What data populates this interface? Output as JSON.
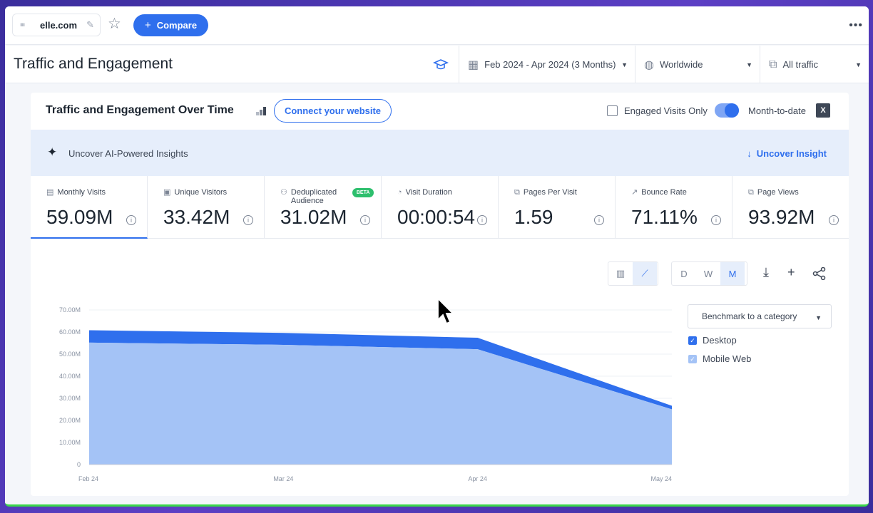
{
  "topbar": {
    "favicon": "ııııı",
    "site": "elle.com",
    "compare_label": "Compare"
  },
  "header": {
    "title": "Traffic and Engagement",
    "date_range": "Feb 2024 - Apr 2024 (3 Months)",
    "country": "Worldwide",
    "traffic_type": "All traffic"
  },
  "card": {
    "title": "Traffic and Engagement Over Time",
    "connect_label": "Connect your website",
    "engaged_label": "Engaged Visits Only",
    "mtd_label": "Month-to-date",
    "ai_text": "Uncover AI-Powered Insights",
    "ai_link": "Uncover Insight"
  },
  "metrics": [
    {
      "label": "Monthly Visits",
      "value": "59.09M",
      "icon": "calendar-icon"
    },
    {
      "label": "Unique Visitors",
      "value": "33.42M",
      "icon": "user-icon"
    },
    {
      "label": "Deduplicated Audience",
      "value": "31.02M",
      "icon": "users-icon",
      "badge": "BETA"
    },
    {
      "label": "Visit Duration",
      "value": "00:00:54",
      "icon": "timer-icon"
    },
    {
      "label": "Pages Per Visit",
      "value": "1.59",
      "icon": "pages-icon"
    },
    {
      "label": "Bounce Rate",
      "value": "71.11%",
      "icon": "bounce-icon"
    },
    {
      "label": "Page Views",
      "value": "93.92M",
      "icon": "pageviews-icon"
    }
  ],
  "toolbar": {
    "granularity": [
      "D",
      "W",
      "M"
    ],
    "selected_granularity": "M"
  },
  "benchmark_label": "Benchmark to a category",
  "legend": [
    {
      "name": "Desktop",
      "color": "#2f6fed"
    },
    {
      "name": "Mobile Web",
      "color": "#a4c3f6"
    }
  ],
  "chart_data": {
    "type": "area",
    "x": [
      "Feb 24",
      "Mar 24",
      "Apr 24",
      "May 24"
    ],
    "series": [
      {
        "name": "Mobile Web",
        "values": [
          55.2,
          54.2,
          52.2,
          25.0
        ]
      },
      {
        "name": "Desktop",
        "values": [
          5.6,
          5.4,
          5.2,
          1.6
        ]
      }
    ],
    "stacked": true,
    "y_ticks": [
      "0",
      "10.00M",
      "20.00M",
      "30.00M",
      "40.00M",
      "50.00M",
      "60.00M",
      "70.00M"
    ],
    "ylim": [
      0,
      70
    ],
    "grid": true
  }
}
